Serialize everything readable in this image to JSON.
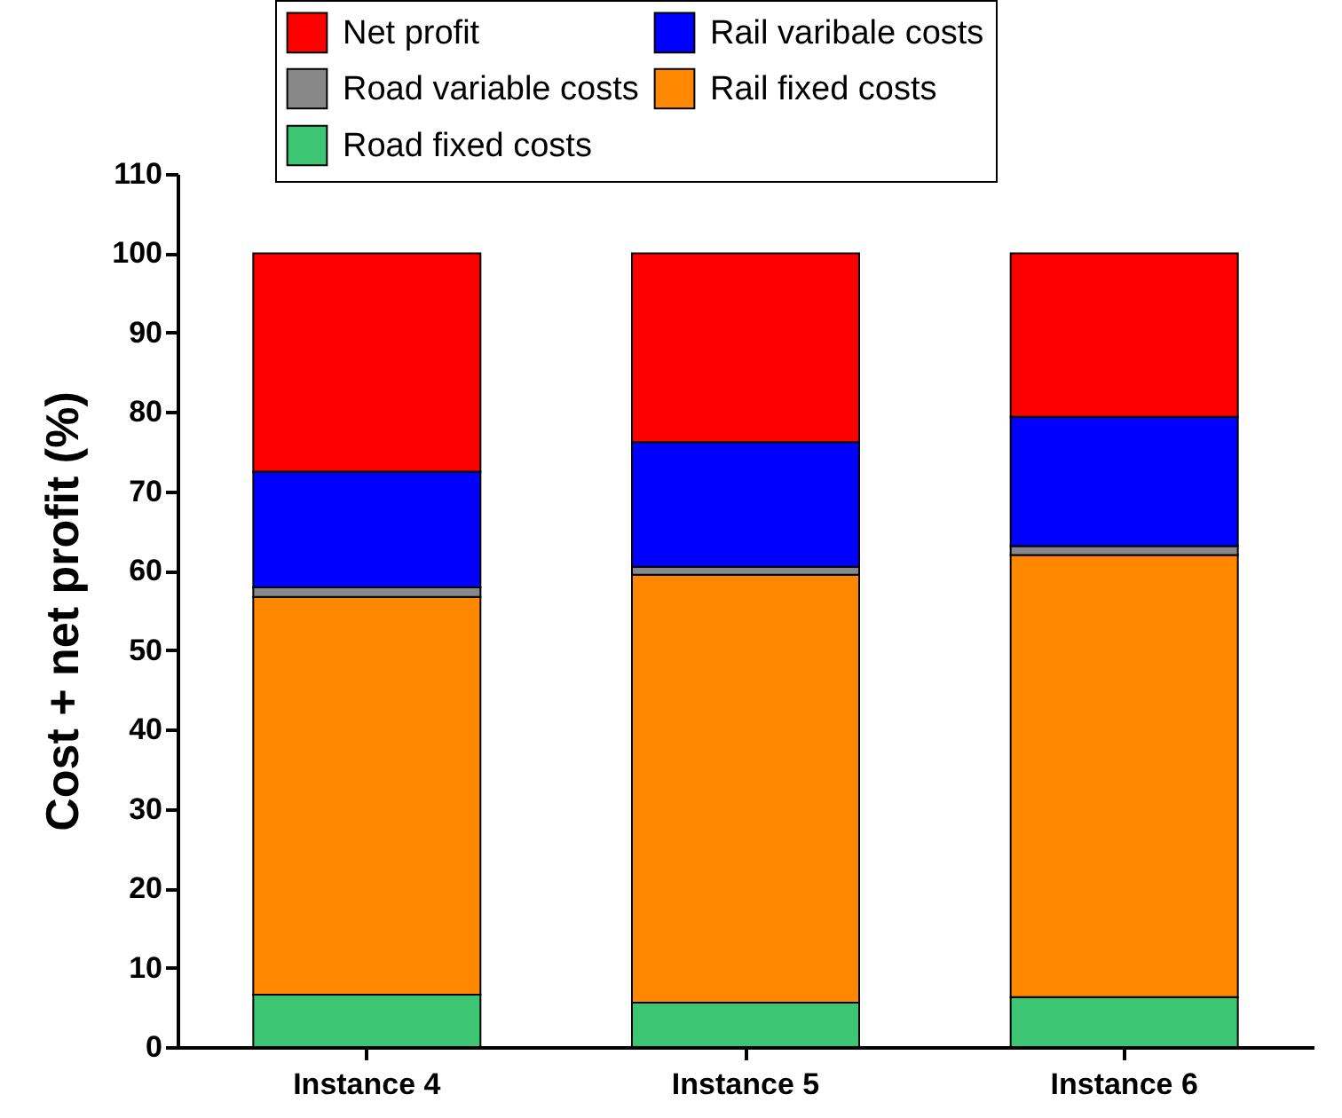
{
  "chart_data": {
    "type": "bar",
    "stacked": true,
    "ylabel": "Cost + net profit (%)",
    "categories": [
      "Instance 4",
      "Instance 5",
      "Instance 6"
    ],
    "series": [
      {
        "name": "Road fixed costs",
        "color": "#3cc674",
        "values": [
          6.6,
          5.6,
          6.3
        ]
      },
      {
        "name": "Rail fixed costs",
        "color": "#ff8800",
        "values": [
          50.1,
          53.9,
          55.7
        ]
      },
      {
        "name": "Road variable costs",
        "color": "#888888",
        "values": [
          1.2,
          1.0,
          1.1
        ]
      },
      {
        "name": "Rail varibale costs",
        "color": "#0000ff",
        "values": [
          14.6,
          15.7,
          16.3
        ]
      },
      {
        "name": "Net profit",
        "color": "#ff0000",
        "values": [
          27.5,
          23.8,
          20.6
        ]
      }
    ],
    "ylim": [
      0,
      110
    ],
    "yticks": [
      0,
      10,
      20,
      30,
      40,
      50,
      60,
      70,
      80,
      90,
      100,
      110
    ],
    "grid": false,
    "legend": "top left"
  }
}
